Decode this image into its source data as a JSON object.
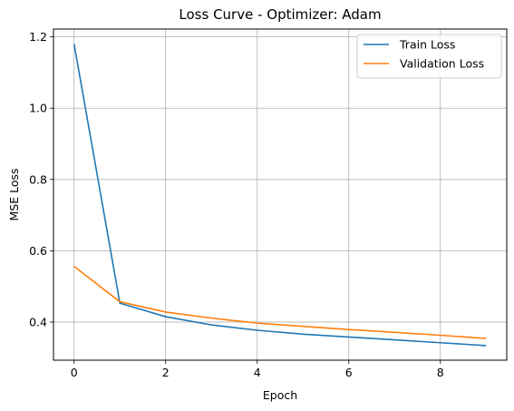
{
  "chart_data": {
    "type": "line",
    "title": "Loss Curve - Optimizer: Adam",
    "xlabel": "Epoch",
    "ylabel": "MSE Loss",
    "x": [
      0,
      1,
      2,
      3,
      4,
      5,
      6,
      7,
      8,
      9
    ],
    "xlim": [
      -0.45,
      9.45
    ],
    "ylim": [
      0.293,
      1.222
    ],
    "xticks": [
      0,
      2,
      4,
      6,
      8
    ],
    "xtick_labels": [
      "0",
      "2",
      "4",
      "6",
      "8"
    ],
    "yticks": [
      0.4,
      0.6,
      0.8,
      1.0,
      1.2
    ],
    "ytick_labels": [
      "0.4",
      "0.6",
      "0.8",
      "1.0",
      "1.2"
    ],
    "grid": true,
    "legend_position": "top-right",
    "series": [
      {
        "name": "Train Loss",
        "color": "#1f77b4",
        "values": [
          1.18,
          0.453,
          0.415,
          0.392,
          0.377,
          0.366,
          0.358,
          0.35,
          0.342,
          0.334
        ]
      },
      {
        "name": "Validation Loss",
        "color": "#ff7f0e",
        "values": [
          0.556,
          0.457,
          0.428,
          0.411,
          0.397,
          0.388,
          0.379,
          0.371,
          0.363,
          0.354
        ]
      }
    ]
  }
}
